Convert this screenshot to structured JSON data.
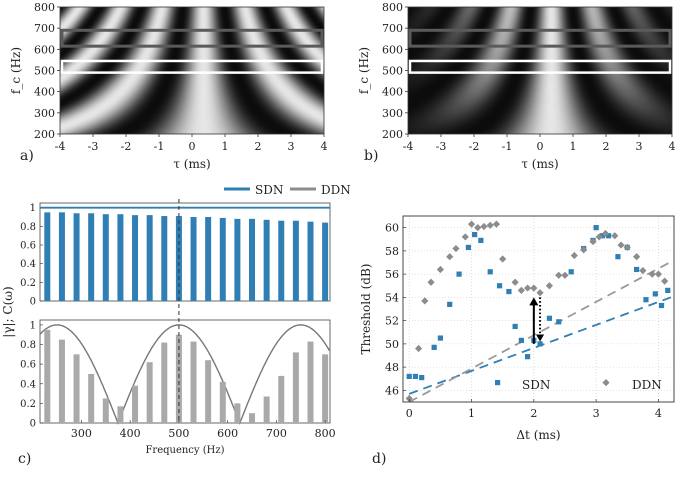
{
  "colors": {
    "sdn": "#2f7fb5",
    "ddn": "#8c8c8c",
    "ddn_bar": "#a9a9a9",
    "dark_box": "#5a5a5a",
    "white_box": "#ffffff"
  },
  "panels": {
    "a": {
      "label": "a)"
    },
    "b": {
      "label": "b)"
    },
    "c": {
      "label": "c)"
    },
    "d": {
      "label": "d)"
    }
  },
  "chart_data": [
    {
      "id": "a",
      "type": "heatmap",
      "ylabel": "f_c (Hz)",
      "xlabel": "τ (ms)",
      "xlim": [
        -4,
        4
      ],
      "ylim": [
        200,
        800
      ],
      "xticks": [
        "-4",
        "-3",
        "-2",
        "-1",
        "0",
        "1",
        "2",
        "3",
        "4"
      ],
      "yticks": [
        "200",
        "300",
        "400",
        "500",
        "600",
        "700",
        "800"
      ],
      "boxes": [
        {
          "style": "dark",
          "f_low": 615,
          "f_high": 690
        },
        {
          "style": "white",
          "f_low": 490,
          "f_high": 545
        }
      ],
      "envelope_decay_ms": 0
    },
    {
      "id": "b",
      "type": "heatmap",
      "ylabel": "f_c (Hz)",
      "xlabel": "τ (ms)",
      "xlim": [
        -4,
        4
      ],
      "ylim": [
        200,
        800
      ],
      "xticks": [
        "-4",
        "-3",
        "-2",
        "-1",
        "0",
        "1",
        "2",
        "3",
        "4"
      ],
      "yticks": [
        "200",
        "300",
        "400",
        "500",
        "600",
        "700",
        "800"
      ],
      "boxes": [
        {
          "style": "dark",
          "f_low": 615,
          "f_high": 690
        },
        {
          "style": "white",
          "f_low": 490,
          "f_high": 545
        }
      ],
      "envelope_decay_ms": 2.6
    },
    {
      "id": "c",
      "type": "bar",
      "xlabel": "Frequency (Hz)",
      "ylabel": "|γ|; C(ω)",
      "xlim": [
        215,
        810
      ],
      "xticks": [
        "300",
        "400",
        "500",
        "600",
        "700",
        "800"
      ],
      "vline_x": 500,
      "legend": {
        "placement": "top",
        "entries": [
          "SDN",
          "DDN"
        ]
      },
      "top": {
        "ylim": [
          0,
          1.05
        ],
        "yticks": [
          "0",
          "0.2",
          "0.4",
          "0.6",
          "0.8",
          "1"
        ],
        "line_value": 1,
        "series": [
          {
            "name": "SDN",
            "x": [
              230,
              260,
              290,
              320,
              350,
              380,
              410,
              440,
              470,
              500,
              530,
              560,
              590,
              620,
              650,
              680,
              710,
              740,
              770,
              800
            ],
            "values": [
              0.95,
              0.95,
              0.94,
              0.94,
              0.93,
              0.93,
              0.92,
              0.92,
              0.91,
              0.91,
              0.9,
              0.9,
              0.89,
              0.88,
              0.88,
              0.87,
              0.86,
              0.86,
              0.85,
              0.84
            ]
          }
        ]
      },
      "bottom": {
        "ylim": [
          0,
          1.05
        ],
        "yticks": [
          "0",
          "0.2",
          "0.4",
          "0.6",
          "0.8",
          "1"
        ],
        "curve": {
          "period_hz": 250,
          "peak_hz": 250,
          "amplitude": 1
        },
        "series": [
          {
            "name": "DDN",
            "x": [
              230,
              260,
              290,
              320,
              350,
              380,
              410,
              440,
              470,
              500,
              530,
              560,
              590,
              620,
              650,
              680,
              710,
              740,
              770,
              800
            ],
            "values": [
              0.95,
              0.85,
              0.7,
              0.5,
              0.25,
              0.17,
              0.38,
              0.62,
              0.82,
              0.9,
              0.83,
              0.64,
              0.42,
              0.2,
              0.1,
              0.27,
              0.48,
              0.72,
              0.83,
              0.7
            ]
          }
        ]
      }
    },
    {
      "id": "d",
      "type": "scatter",
      "xlabel": "Δt (ms)",
      "ylabel": "Threshold (dB)",
      "xlim": [
        -0.1,
        4.25
      ],
      "ylim": [
        45,
        61
      ],
      "xticks": [
        "0",
        "1",
        "2",
        "3",
        "4"
      ],
      "yticks": [
        "46",
        "48",
        "50",
        "52",
        "54",
        "56",
        "58",
        "60"
      ],
      "grid": true,
      "legend": {
        "placement": "bottom",
        "entries": [
          "SDN",
          "DDN"
        ]
      },
      "series": [
        {
          "name": "SDN",
          "x": [
            0,
            0.1,
            0.2,
            0.4,
            0.5,
            0.65,
            0.8,
            0.95,
            1.05,
            1.15,
            1.3,
            1.45,
            1.6,
            1.7,
            1.8,
            1.9,
            2.0,
            2.1,
            2.25,
            2.4,
            2.6,
            2.8,
            2.95,
            3.0,
            3.1,
            3.2,
            3.35,
            3.5,
            3.65,
            3.8,
            3.95,
            4.05,
            4.15
          ],
          "values": [
            47.2,
            47.2,
            47.1,
            49.7,
            50.5,
            53.4,
            56.0,
            58.3,
            59.4,
            58.9,
            56.2,
            55.0,
            54.5,
            51.5,
            50.3,
            48.9,
            50.3,
            50.0,
            52.2,
            51.9,
            56.2,
            58.2,
            58.9,
            60.0,
            59.3,
            59.3,
            57.5,
            58.3,
            56.4,
            53.8,
            54.3,
            53.3,
            54.6
          ]
        },
        {
          "name": "DDN",
          "x": [
            0,
            0.15,
            0.25,
            0.35,
            0.5,
            0.65,
            0.75,
            0.9,
            1.0,
            1.1,
            1.2,
            1.3,
            1.4,
            1.5,
            1.7,
            1.8,
            1.9,
            2.0,
            2.1,
            2.25,
            2.4,
            2.5,
            2.65,
            2.8,
            2.95,
            3.05,
            3.15,
            3.3,
            3.4,
            3.5,
            3.65,
            3.75,
            3.9,
            4.0,
            4.1
          ],
          "values": [
            45.3,
            49.6,
            53.7,
            55.3,
            56.4,
            57.5,
            58.2,
            59.2,
            60.3,
            60.0,
            60.1,
            60.2,
            60.3,
            57.3,
            55.3,
            54.6,
            54.8,
            54.8,
            54.4,
            55.0,
            55.9,
            55.9,
            57.6,
            58.1,
            58.8,
            59.2,
            59.5,
            59.3,
            58.5,
            58.3,
            57.5,
            56.3,
            56.0,
            56.0,
            55.4
          ]
        }
      ],
      "trend_lines": [
        {
          "name": "SDN",
          "x": [
            0,
            4.25
          ],
          "values": [
            45.7,
            54.1
          ]
        },
        {
          "name": "DDN",
          "x": [
            0,
            4.25
          ],
          "values": [
            45.0,
            57.2
          ]
        }
      ],
      "arrows": [
        {
          "style": "solid",
          "x": 2.0,
          "from": 50.0,
          "to": 54.0
        },
        {
          "style": "dotted",
          "x": 2.1,
          "from": 54.0,
          "to": 50.2
        }
      ]
    }
  ]
}
